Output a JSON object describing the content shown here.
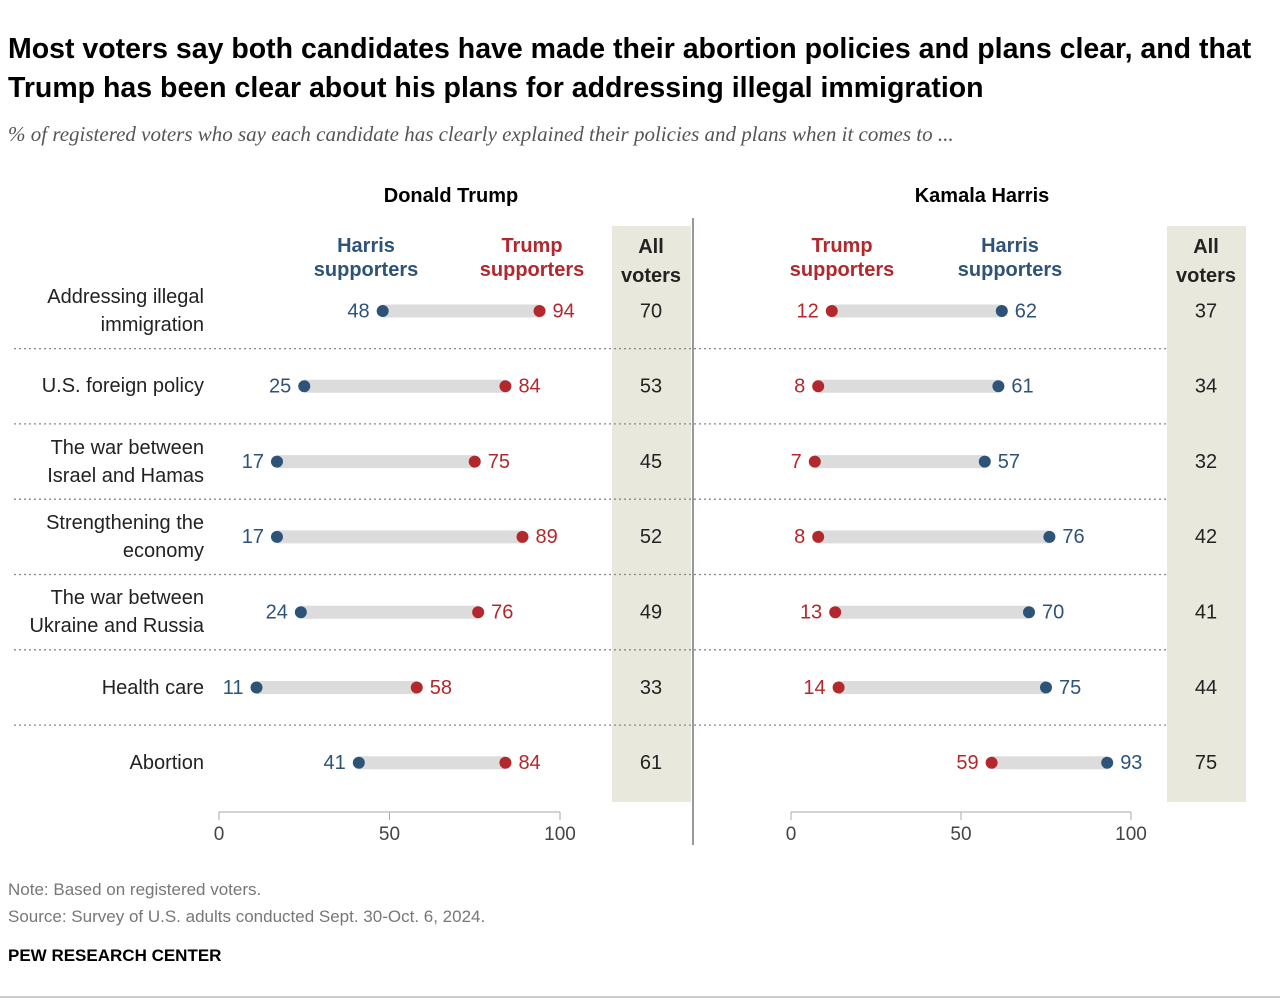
{
  "title": "Most voters say both candidates have made their abortion policies and plans clear, and that Trump has been clear about his plans for addressing illegal immigration",
  "subtitle": "% of registered voters who say each candidate has clearly explained their policies and plans when it comes to ...",
  "chart_data": [
    {
      "type": "dumbbell",
      "title": "Donald Trump",
      "categories": [
        "Addressing illegal immigration",
        "U.S. foreign policy",
        "The war between Israel and Hamas",
        "Strengthening the economy",
        "The war between Ukraine and Russia",
        "Health care",
        "Abortion"
      ],
      "series": [
        {
          "name": "Harris supporters",
          "color": "#2e5379",
          "values": [
            48,
            25,
            17,
            17,
            24,
            11,
            41
          ]
        },
        {
          "name": "Trump supporters",
          "color": "#b3282d",
          "values": [
            94,
            84,
            75,
            89,
            76,
            58,
            84
          ]
        }
      ],
      "summary_column": {
        "name": "All voters",
        "color": "#e9e8dc",
        "values": [
          70,
          53,
          45,
          52,
          49,
          33,
          61
        ]
      },
      "xlim": [
        0,
        100
      ],
      "xticks": [
        0,
        50,
        100
      ]
    },
    {
      "type": "dumbbell",
      "title": "Kamala Harris",
      "series": [
        {
          "name": "Trump supporters",
          "color": "#b3282d",
          "values": [
            12,
            8,
            7,
            8,
            13,
            14,
            59
          ]
        },
        {
          "name": "Harris supporters",
          "color": "#2e5379",
          "values": [
            62,
            61,
            57,
            76,
            70,
            75,
            93
          ]
        }
      ],
      "summary_column": {
        "name": "All voters",
        "color": "#e9e8dc",
        "values": [
          37,
          34,
          32,
          42,
          41,
          44,
          75
        ]
      },
      "xlim": [
        0,
        100
      ],
      "xticks": [
        0,
        50,
        100
      ]
    }
  ],
  "note": "Note: Based on registered voters.",
  "source": "Source: Survey of U.S. adults conducted Sept. 30-Oct. 6, 2024.",
  "credit": "PEW RESEARCH CENTER"
}
